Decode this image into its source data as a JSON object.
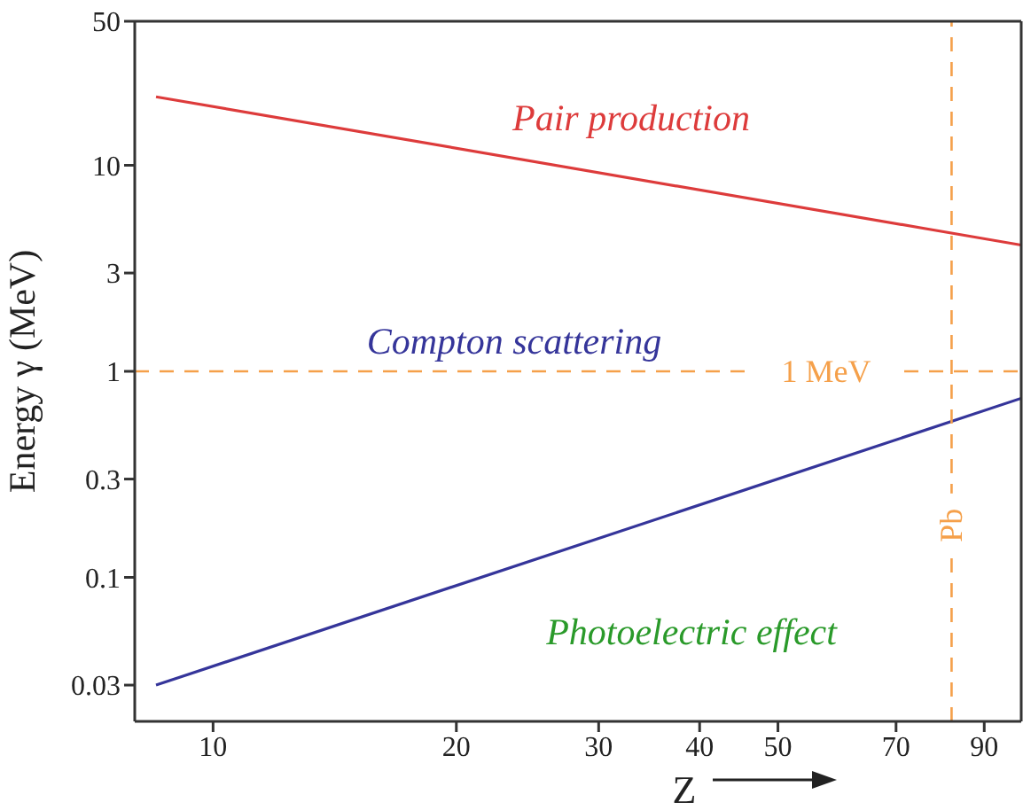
{
  "chart_data": {
    "type": "line",
    "xlabel": "Z",
    "ylabel": "Energy γ (MeV)",
    "log": "xy",
    "xlim": [
      8,
      100
    ],
    "ylim": [
      0.02,
      50
    ],
    "xticks": [
      10,
      20,
      30,
      40,
      50,
      70,
      90
    ],
    "yticks": [
      0.03,
      0.1,
      0.3,
      1,
      3,
      10,
      50
    ],
    "grid": false,
    "legend": false,
    "line_style": "solid",
    "marker": "none",
    "x": [
      8.5,
      100
    ],
    "series": [
      {
        "values": [
          21.5,
          4.1
        ],
        "color": "#dd3b3b"
      },
      {
        "values": [
          0.03,
          0.74
        ],
        "color": "#35359a"
      }
    ],
    "ref_lines": [
      {
        "axis": "x",
        "value": 82,
        "label": "Pb",
        "color": "#f5a04a",
        "line_style": "dashed"
      },
      {
        "axis": "y",
        "value": 1,
        "label": "1 MeV",
        "color": "#f5a04a",
        "line_style": "dashed"
      }
    ],
    "annotations": [
      "Pair production",
      "Compton scattering",
      "Photoelectric effect"
    ]
  }
}
